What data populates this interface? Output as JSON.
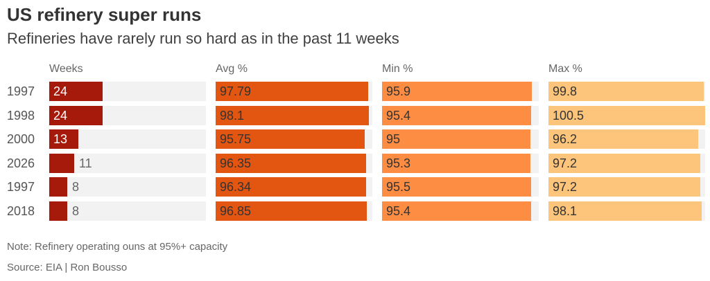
{
  "title": "US refinery super runs",
  "subtitle": "Refineries have rarely run so hard as in the past 11 weeks",
  "note": "Note: Refinery operating ouns at 95%+ capacity",
  "source": "Source: EIA | Ron Bousso",
  "chart_data": {
    "type": "table",
    "rows": [
      "1997",
      "1998",
      "2000",
      "2026",
      "1997",
      "2018"
    ],
    "columns": [
      {
        "key": "weeks",
        "header": "Weeks",
        "values": [
          24,
          24,
          13,
          11,
          8,
          8
        ],
        "display": [
          "24",
          "24",
          "13",
          "11",
          "8",
          "8"
        ],
        "scale_max": 70,
        "color": "#a61a0c"
      },
      {
        "key": "avg",
        "header": "Avg %",
        "values": [
          97.79,
          98.1,
          95.75,
          96.35,
          96.34,
          96.85
        ],
        "display": [
          "97.79",
          "98.1",
          "95.75",
          "96.35",
          "96.34",
          "96.85"
        ],
        "scale_max": 100.5,
        "color": "#e35612"
      },
      {
        "key": "min",
        "header": "Min %",
        "values": [
          95.9,
          95.4,
          95,
          95.3,
          95.5,
          95.4
        ],
        "display": [
          "95.9",
          "95.4",
          "95",
          "95.3",
          "95.5",
          "95.4"
        ],
        "scale_max": 100.5,
        "color": "#fd8d43"
      },
      {
        "key": "max",
        "header": "Max %",
        "values": [
          99.8,
          100.5,
          96.2,
          97.2,
          97.2,
          98.1
        ],
        "display": [
          "99.8",
          "100.5",
          "96.2",
          "97.2",
          "97.2",
          "98.1"
        ],
        "scale_max": 100.5,
        "color": "#fdc57c"
      }
    ]
  }
}
